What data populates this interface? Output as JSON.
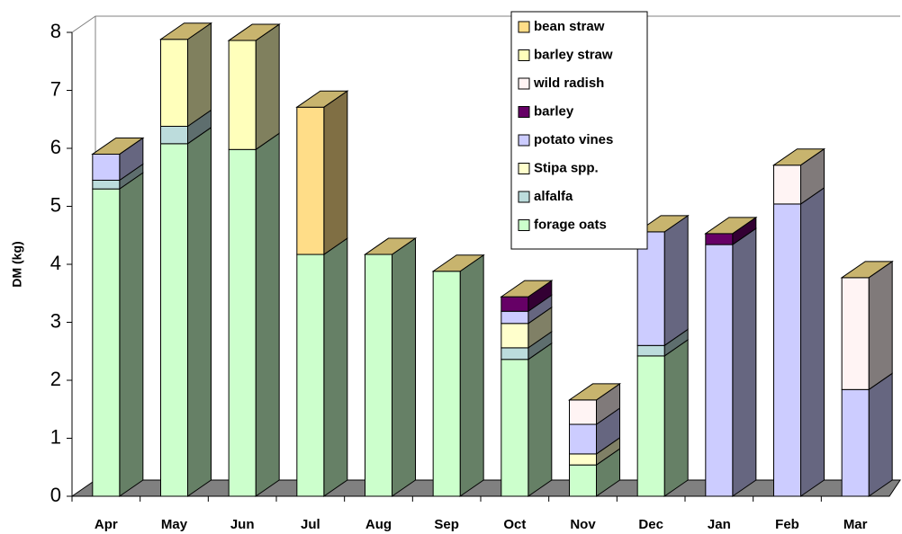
{
  "chart_data": {
    "type": "stacked-bar-3d",
    "y_label": "DM (kg)",
    "categories": [
      "Apr",
      "May",
      "Jun",
      "Jul",
      "Aug",
      "Sep",
      "Oct",
      "Nov",
      "Dec",
      "Jan",
      "Feb",
      "Mar"
    ],
    "series": [
      {
        "name": "forage oats",
        "color": "#ccffcc",
        "values": [
          5.3,
          6.08,
          5.98,
          4.17,
          4.17,
          3.88,
          2.36,
          0.54,
          2.42,
          null,
          null,
          null
        ]
      },
      {
        "name": "alfalfa",
        "color": "#bcdcdc",
        "values": [
          0.15,
          0.3,
          null,
          null,
          null,
          null,
          0.2,
          null,
          0.18,
          null,
          null,
          null
        ]
      },
      {
        "name": "Stipa spp.",
        "color": "#ffffcc",
        "values": [
          null,
          null,
          null,
          null,
          null,
          null,
          0.42,
          0.19,
          null,
          null,
          null,
          null
        ]
      },
      {
        "name": "potato vines",
        "color": "#ccccff",
        "values": [
          0.45,
          null,
          null,
          null,
          null,
          null,
          0.21,
          0.51,
          1.96,
          4.34,
          5.04,
          1.84
        ]
      },
      {
        "name": "barley",
        "color": "#660066",
        "values": [
          null,
          null,
          null,
          null,
          null,
          null,
          0.25,
          null,
          null,
          0.19,
          null,
          null
        ]
      },
      {
        "name": "wild radish",
        "color": "#fff4f4",
        "values": [
          null,
          null,
          null,
          null,
          null,
          null,
          null,
          0.42,
          null,
          null,
          0.67,
          1.93
        ]
      },
      {
        "name": "barley straw",
        "color": "#ffffbb",
        "values": [
          null,
          1.5,
          1.88,
          null,
          null,
          null,
          null,
          null,
          null,
          null,
          null,
          null
        ]
      },
      {
        "name": "bean straw",
        "color": "#ffdd88",
        "values": [
          null,
          null,
          null,
          2.54,
          null,
          null,
          null,
          null,
          null,
          null,
          null,
          null
        ]
      }
    ],
    "ylim": [
      0,
      8
    ],
    "yticks": [
      0,
      1,
      2,
      3,
      4,
      5,
      6,
      7,
      8
    ]
  }
}
